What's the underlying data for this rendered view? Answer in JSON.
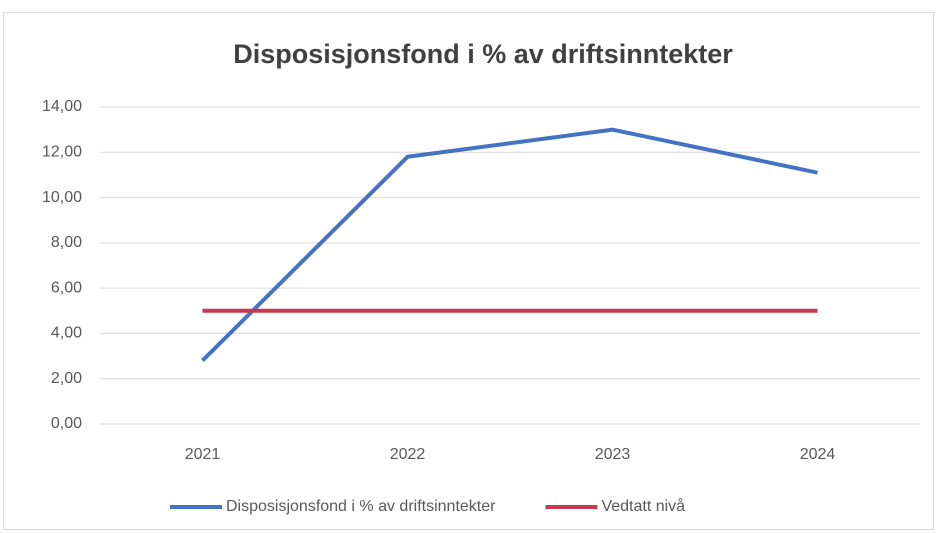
{
  "chart_data": {
    "type": "line",
    "title": "Disposisjonsfond i % av driftsinntekter",
    "categories": [
      "2021",
      "2022",
      "2023",
      "2024"
    ],
    "series": [
      {
        "name": "Disposisjonsfond i % av driftsinntekter",
        "color": "#4472c4",
        "values": [
          2.8,
          11.8,
          13.0,
          11.1
        ]
      },
      {
        "name": "Vedtatt nivå",
        "color": "#c8394f",
        "values": [
          5,
          5,
          5,
          5
        ]
      }
    ],
    "ylim": [
      0,
      14
    ],
    "yticks": [
      {
        "value": 0,
        "label": "0,00"
      },
      {
        "value": 2,
        "label": "2,00"
      },
      {
        "value": 4,
        "label": "4,00"
      },
      {
        "value": 6,
        "label": "6,00"
      },
      {
        "value": 8,
        "label": "8,00"
      },
      {
        "value": 10,
        "label": "10,00"
      },
      {
        "value": 12,
        "label": "12,00"
      },
      {
        "value": 14,
        "label": "14,00"
      }
    ],
    "grid": true,
    "legend": "bottom"
  }
}
